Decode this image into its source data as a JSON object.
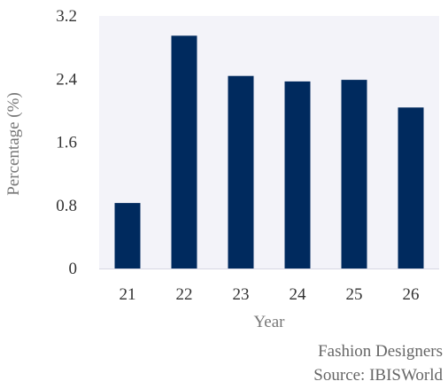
{
  "chart_data": {
    "type": "bar",
    "categories": [
      "21",
      "22",
      "23",
      "24",
      "25",
      "26"
    ],
    "values": [
      0.83,
      2.95,
      2.44,
      2.37,
      2.39,
      2.04
    ],
    "title": "",
    "xlabel": "Year",
    "ylabel": "Percentage (%)",
    "ylim": [
      0,
      3.2
    ],
    "yticks": [
      "0",
      "0.8",
      "1.6",
      "2.4",
      "3.2"
    ],
    "grid": false,
    "bar_color": "#002a5e",
    "plot_background": "#f3f3f9"
  },
  "caption": {
    "title": "Fashion Designers",
    "source": "Source: IBISWorld"
  }
}
